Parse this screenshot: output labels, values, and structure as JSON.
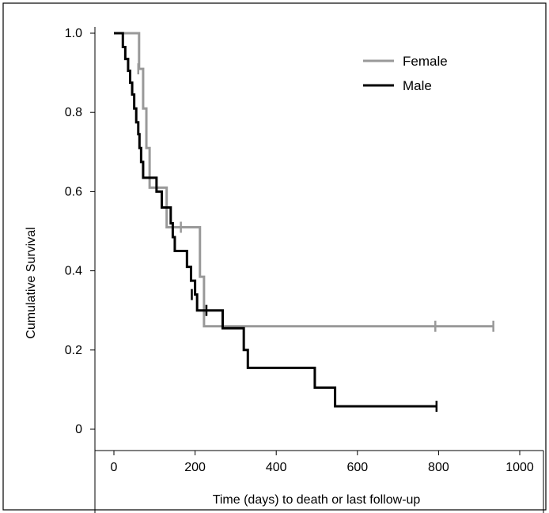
{
  "chart_data": {
    "type": "line",
    "subtype": "kaplan-meier step",
    "title": "",
    "xlabel": "Time (days) to death or last follow-up",
    "ylabel": "Cumulative Survival",
    "xlim": [
      0,
      1000
    ],
    "ylim": [
      0,
      1.0
    ],
    "x_ticks": [
      0,
      200,
      400,
      600,
      800,
      1000
    ],
    "x_tick_labels": [
      "0",
      "200",
      "400",
      "600",
      "800",
      "1000"
    ],
    "y_ticks": [
      0,
      0.2,
      0.4,
      0.6,
      0.8,
      1.0
    ],
    "y_tick_labels": [
      "0",
      "0.2",
      "0.4",
      "0.6",
      "0.8",
      "1.0"
    ],
    "grid": false,
    "legend_position": "top-right",
    "series": [
      {
        "name": "Female",
        "color": "#999999",
        "steps": [
          [
            0,
            1.0
          ],
          [
            62,
            0.91
          ],
          [
            72,
            0.81
          ],
          [
            80,
            0.71
          ],
          [
            88,
            0.61
          ],
          [
            130,
            0.51
          ],
          [
            212,
            0.385
          ],
          [
            222,
            0.26
          ],
          [
            935,
            0.26
          ]
        ],
        "censored": [
          [
            60,
            0.91
          ],
          [
            165,
            0.51
          ],
          [
            792,
            0.26
          ],
          [
            935,
            0.26
          ]
        ]
      },
      {
        "name": "Male",
        "color": "#000000",
        "steps": [
          [
            0,
            1.0
          ],
          [
            22,
            0.965
          ],
          [
            28,
            0.935
          ],
          [
            35,
            0.905
          ],
          [
            40,
            0.875
          ],
          [
            45,
            0.845
          ],
          [
            50,
            0.81
          ],
          [
            55,
            0.775
          ],
          [
            60,
            0.745
          ],
          [
            63,
            0.71
          ],
          [
            67,
            0.675
          ],
          [
            72,
            0.635
          ],
          [
            105,
            0.6
          ],
          [
            118,
            0.56
          ],
          [
            140,
            0.52
          ],
          [
            145,
            0.485
          ],
          [
            150,
            0.45
          ],
          [
            180,
            0.41
          ],
          [
            190,
            0.375
          ],
          [
            200,
            0.34
          ],
          [
            205,
            0.3
          ],
          [
            268,
            0.255
          ],
          [
            320,
            0.2
          ],
          [
            330,
            0.155
          ],
          [
            495,
            0.105
          ],
          [
            545,
            0.058
          ],
          [
            795,
            0.058
          ]
        ],
        "censored": [
          [
            192,
            0.34
          ],
          [
            228,
            0.3
          ],
          [
            795,
            0.058
          ]
        ]
      }
    ]
  }
}
